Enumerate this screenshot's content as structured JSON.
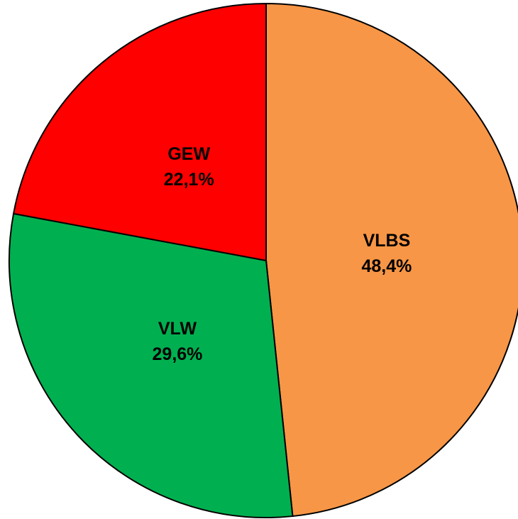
{
  "chart_data": {
    "type": "pie",
    "categories": [
      "VLBS",
      "VLW",
      "GEW"
    ],
    "values": [
      48.4,
      29.6,
      22.1
    ],
    "value_labels": [
      "48,4%",
      "29,6%",
      "22,1%"
    ],
    "colors": [
      "#F79646",
      "#00B050",
      "#FF0000"
    ]
  }
}
